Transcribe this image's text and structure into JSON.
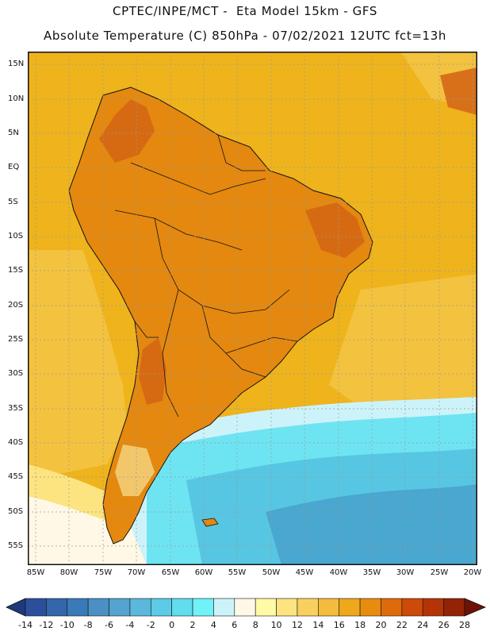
{
  "header": {
    "title_line1": "CPTEC/INPE/MCT -  Eta Model 15km - GFS",
    "title_line2": "Absolute Temperature (C) 850hPa - 07/02/2021 12UTC fct=13h"
  },
  "axes": {
    "latitude_labels": [
      "15N",
      "10N",
      "5N",
      "EQ",
      "5S",
      "10S",
      "15S",
      "20S",
      "25S",
      "30S",
      "35S",
      "40S",
      "45S",
      "50S",
      "55S"
    ],
    "longitude_labels": [
      "85W",
      "80W",
      "75W",
      "70W",
      "65W",
      "60W",
      "55W",
      "50W",
      "45W",
      "40W",
      "35W",
      "30W",
      "25W",
      "20W"
    ]
  },
  "colorbar": {
    "labels": [
      "-14",
      "-12",
      "-10",
      "-8",
      "-6",
      "-4",
      "-2",
      "0",
      "2",
      "4",
      "6",
      "8",
      "10",
      "12",
      "14",
      "16",
      "18",
      "20",
      "22",
      "24",
      "26",
      "28"
    ],
    "colors": [
      "#2c4f9c",
      "#3366aa",
      "#3a7ab8",
      "#4a90c4",
      "#54a4cf",
      "#5bb8dc",
      "#5ccbe6",
      "#63dcee",
      "#6ff2f8",
      "#cdf3fa",
      "#fff8e6",
      "#fffaa6",
      "#fde480",
      "#f9d060",
      "#f4bc3e",
      "#eea81e",
      "#e88c0f",
      "#df6a0c",
      "#cc4a0a",
      "#b43408",
      "#932206"
    ],
    "color_low_extend": "#1f3a7a",
    "color_high_extend": "#6e1208"
  },
  "map": {
    "colors": {
      "ocean_tropical": "#efb31c",
      "ocean_warm": "#f3c23e",
      "land_warm": "#e4880f",
      "land_hot": "#d66a12",
      "land_cool": "#f2c76b",
      "ocean_cold_1": "#cdf3fa",
      "ocean_cold_2": "#6ee4f2",
      "ocean_cold_3": "#57c6e2",
      "ocean_cold_4": "#49a7d0",
      "borders": "#111111",
      "gridlines": "#9a9a9a"
    }
  }
}
